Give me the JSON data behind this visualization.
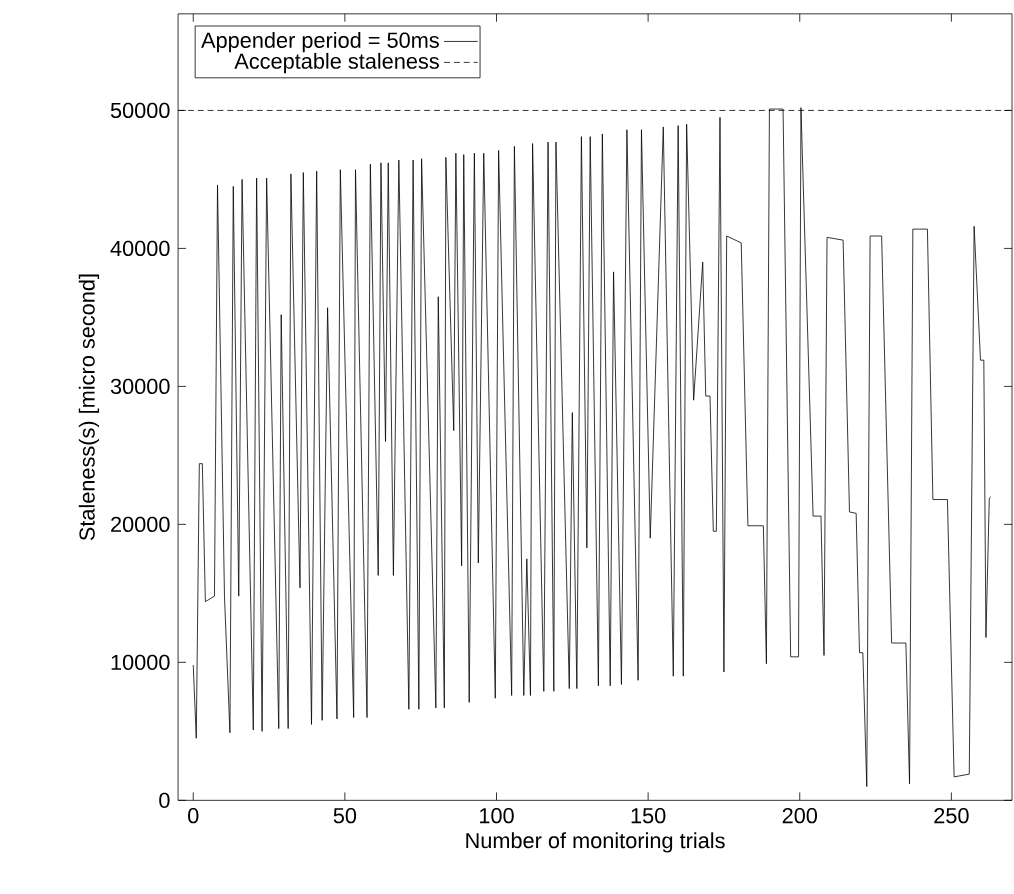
{
  "chart_data": {
    "type": "line",
    "xlabel": "Number of monitoring trials",
    "ylabel": "Staleness(s) [micro second]",
    "x": [
      0,
      1,
      2,
      3,
      4,
      7,
      8,
      10.3,
      12.1,
      13.2,
      15,
      16.1,
      19.8,
      20.9,
      22.7,
      24.2,
      28.2,
      29,
      31.3,
      32.2,
      35.2,
      36.3,
      39,
      40.7,
      42.5,
      44.3,
      47.4,
      48.5,
      52.9,
      53.5,
      57.3,
      58.4,
      61,
      61.9,
      63.4,
      64.3,
      66,
      67.8,
      71.1,
      72.5,
      74.4,
      75.3,
      80,
      80.8,
      82.8,
      83.3,
      85.9,
      86.6,
      88.5,
      89.2,
      91,
      92.7,
      94,
      95.8,
      99.6,
      100.7,
      105,
      105.9,
      109,
      110,
      111.2,
      111.9,
      115.6,
      117,
      118.9,
      119.6,
      124,
      125,
      126.5,
      128,
      129.8,
      130.9,
      133.6,
      134.9,
      137.5,
      138.6,
      141.2,
      143,
      146.7,
      147.8,
      150.7,
      155,
      158.3,
      159.9,
      161.6,
      162.7,
      165,
      168,
      169,
      170.4,
      171.5,
      172.5,
      173.7,
      175,
      175.9,
      180.7,
      182.9,
      188,
      189,
      190,
      194.5,
      197,
      199.6,
      200.4,
      204.4,
      207,
      208,
      209,
      214.3,
      216.4,
      218.6,
      219.7,
      220.8,
      222.1,
      223.2,
      227,
      230.3,
      235,
      236.2,
      237.3,
      242.1,
      243.9,
      248.7,
      250.9,
      255.9,
      257.5,
      259.6,
      260.7,
      261.4,
      262.5,
      263
    ],
    "series": [
      {
        "name": "Appender period = 50ms",
        "color": "#000000",
        "values": [
          9800,
          4500,
          24400,
          24400,
          14400,
          14800,
          44600,
          14800,
          4900,
          44500,
          14800,
          45000,
          5100,
          45100,
          5000,
          45100,
          5200,
          35200,
          5200,
          45400,
          15400,
          45500,
          5500,
          45600,
          5800,
          35700,
          5900,
          45700,
          6000,
          45700,
          6000,
          46100,
          16300,
          46200,
          26000,
          46200,
          16300,
          46400,
          6600,
          46400,
          6600,
          46500,
          6700,
          36500,
          6700,
          46600,
          26800,
          46900,
          17000,
          46800,
          7100,
          46900,
          17200,
          46900,
          7400,
          47100,
          7600,
          47400,
          7600,
          17500,
          7600,
          47600,
          7900,
          47700,
          7900,
          47700,
          8100,
          28100,
          8100,
          48100,
          18300,
          48100,
          8300,
          48300,
          8300,
          38300,
          8400,
          48600,
          8700,
          48600,
          19000,
          48800,
          9000,
          48900,
          9000,
          49000,
          29000,
          39000,
          29300,
          29300,
          19500,
          19500,
          49500,
          9300,
          40900,
          40400,
          19900,
          19900,
          9900,
          50100,
          50100,
          10400,
          10400,
          50200,
          20600,
          20600,
          10500,
          40800,
          40600,
          20900,
          20800,
          10700,
          10700,
          1000,
          40900,
          40900,
          11400,
          11400,
          1200,
          41400,
          41400,
          21800,
          21800,
          1700,
          1900,
          41600,
          31900,
          31900,
          11800,
          21900,
          22000
        ]
      }
    ],
    "ref_lines": [
      {
        "axis": "y",
        "value": 50000,
        "label": "Acceptable staleness",
        "color": "#000000",
        "line_style": "dashed"
      }
    ],
    "xlim": [
      -5,
      270
    ],
    "ylim": [
      0,
      57000
    ],
    "xticks": [
      0,
      50,
      100,
      150,
      200,
      250
    ],
    "yticks": [
      0,
      10000,
      20000,
      30000,
      40000,
      50000
    ],
    "legend": "top left"
  }
}
